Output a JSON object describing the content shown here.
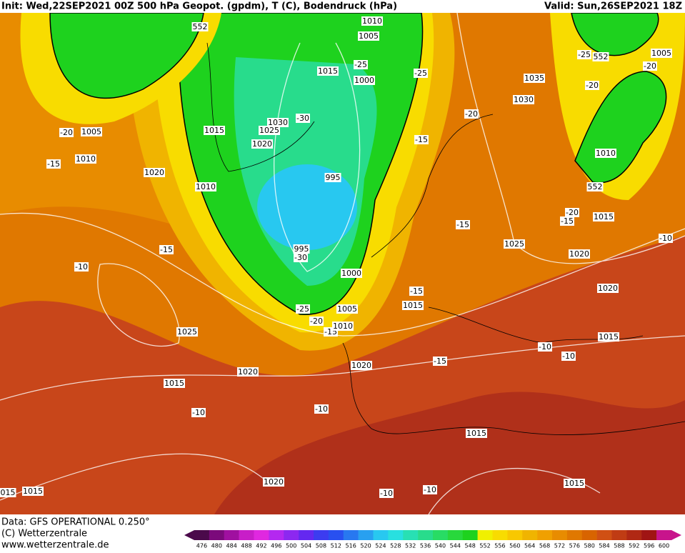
{
  "header": {
    "init": "Init: Wed,22SEP2021 00Z 500 hPa Geopot. (gpdm), T (C), Bodendruck (hPa)",
    "valid": "Valid: Sun,26SEP2021 18Z"
  },
  "footer": {
    "source": "Data: GFS OPERATIONAL 0.250°",
    "copyright": "(C) Wetterzentrale",
    "url": "www.wetterzentrale.de"
  },
  "colorbar": {
    "levels": [
      476,
      480,
      484,
      488,
      492,
      496,
      500,
      504,
      508,
      512,
      516,
      520,
      524,
      528,
      532,
      536,
      540,
      544,
      548,
      552,
      556,
      560,
      564,
      568,
      572,
      576,
      580,
      584,
      588,
      592,
      596,
      600
    ],
    "colors": [
      "#4b0a4b",
      "#7b0a7b",
      "#a010a0",
      "#c81ec8",
      "#e028e0",
      "#b428f0",
      "#8c28f0",
      "#6428f0",
      "#3c3cf0",
      "#2850f0",
      "#2878f0",
      "#28a0f0",
      "#28c8f0",
      "#28e0e0",
      "#28e0b4",
      "#28dc8c",
      "#28dc64",
      "#28d83c",
      "#1ed21e",
      "#f0f000",
      "#f8dc00",
      "#f8c800",
      "#f0b400",
      "#f0a000",
      "#e88c00",
      "#e07800",
      "#d86400",
      "#d05014",
      "#c03c14",
      "#b02814",
      "#a01414",
      "#c8148c"
    ]
  },
  "map": {
    "labels": [
      "552",
      "552",
      "552",
      "1010",
      "1005",
      "1015",
      "-25",
      "1000",
      "-25",
      "1035",
      "1030",
      "-25",
      "1005",
      "-20",
      "-20",
      "-20",
      "1030",
      "1025",
      "-30",
      "1015",
      "1020",
      "-20",
      "1005",
      "-15",
      "1010",
      "1010",
      "-15",
      "1020",
      "995",
      "1010",
      "-20",
      "-15",
      "1015",
      "-15",
      "1025",
      "-15",
      "995",
      "-30",
      "1020",
      "-10",
      "-10",
      "1000",
      "1020",
      "-15",
      "1015",
      "-25",
      "1005",
      "-20",
      "-15",
      "1010",
      "1025",
      "1015",
      "-10",
      "-10",
      "-15",
      "1020",
      "1020",
      "1015",
      "-10",
      "-10",
      "1015",
      "1020",
      "1015",
      "015",
      "1015",
      "-10",
      "-10"
    ]
  }
}
